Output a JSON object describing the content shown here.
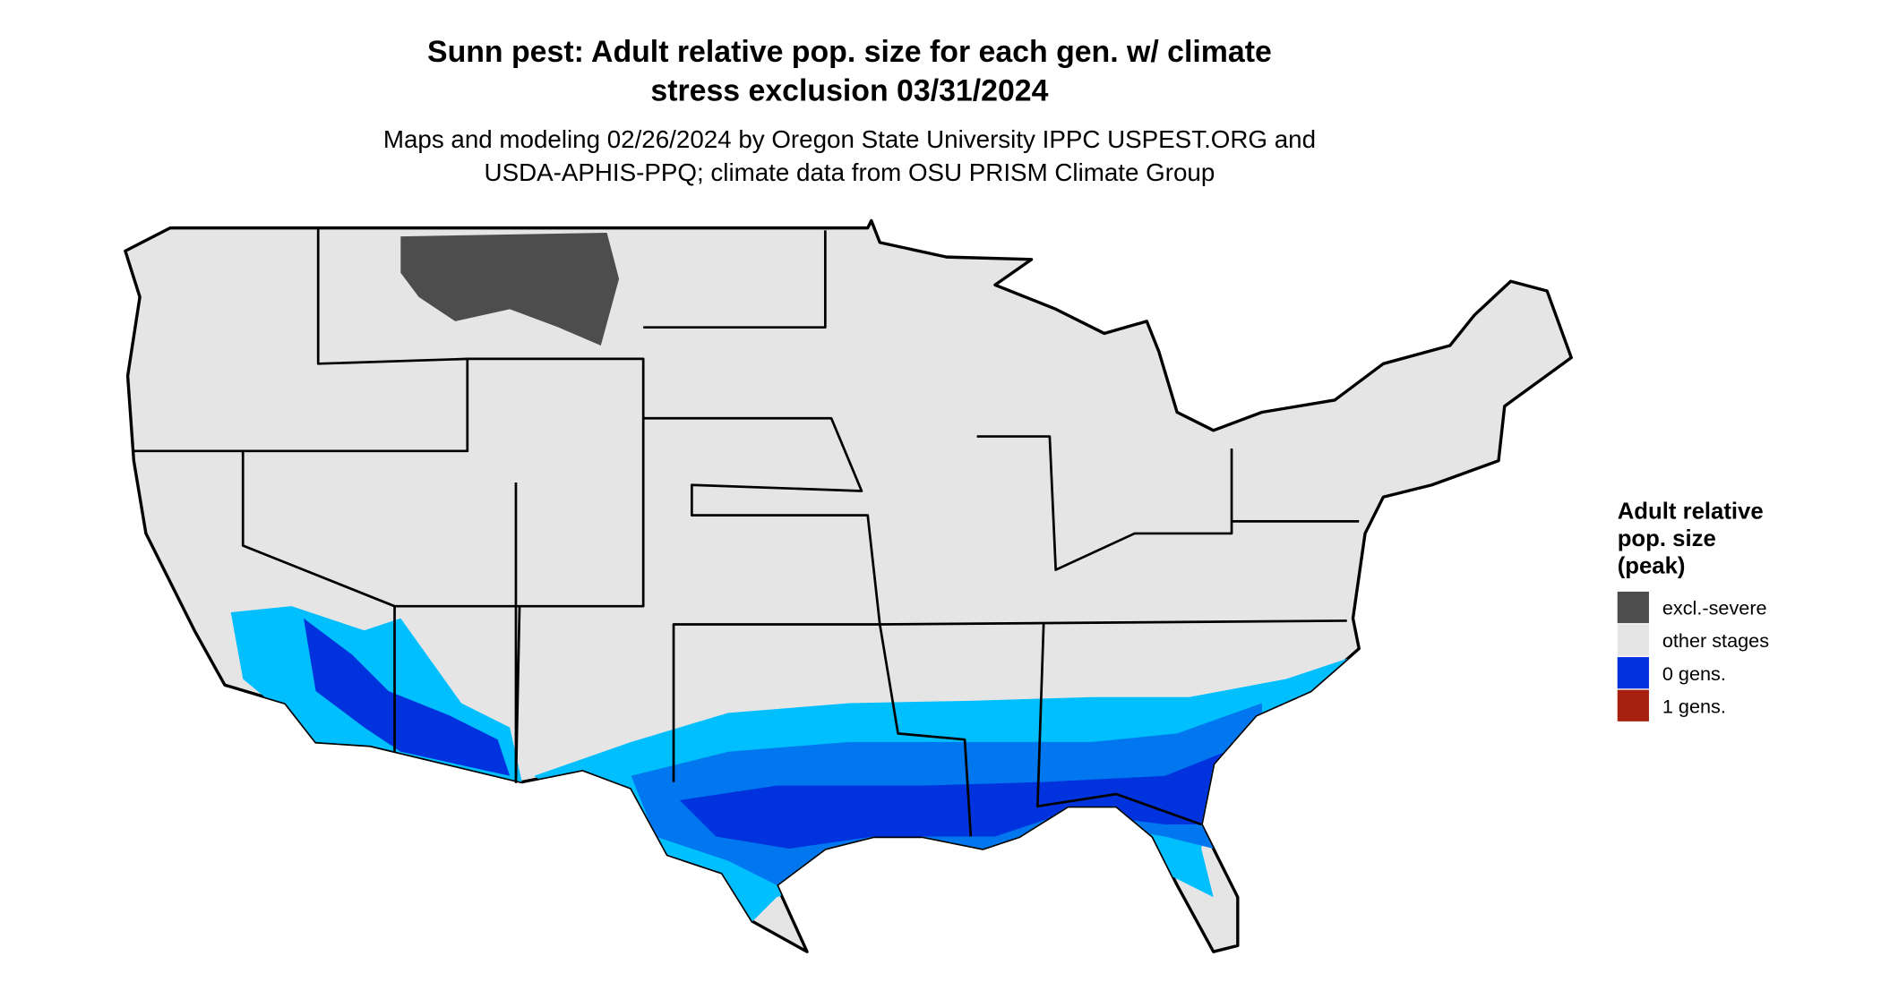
{
  "title": [
    "Sunn pest: Adult relative pop. size for each gen. w/ climate",
    "stress exclusion 03/31/2024"
  ],
  "subtitle": [
    "Maps and modeling 02/26/2024 by Oregon State University IPPC USPEST.ORG and",
    "USDA-APHIS-PPQ; climate data from OSU PRISM Climate Group"
  ],
  "legend": {
    "title": [
      "Adult relative",
      "pop. size",
      "(peak)"
    ],
    "items": [
      {
        "label": "excl.-severe",
        "color": "#4d4d4d"
      },
      {
        "label": "other stages",
        "color": "#e5e5e5"
      },
      {
        "label": "0 gens.",
        "color": "#0033dd"
      },
      {
        "label": "1 gens.",
        "color": "#a82010"
      }
    ]
  }
}
